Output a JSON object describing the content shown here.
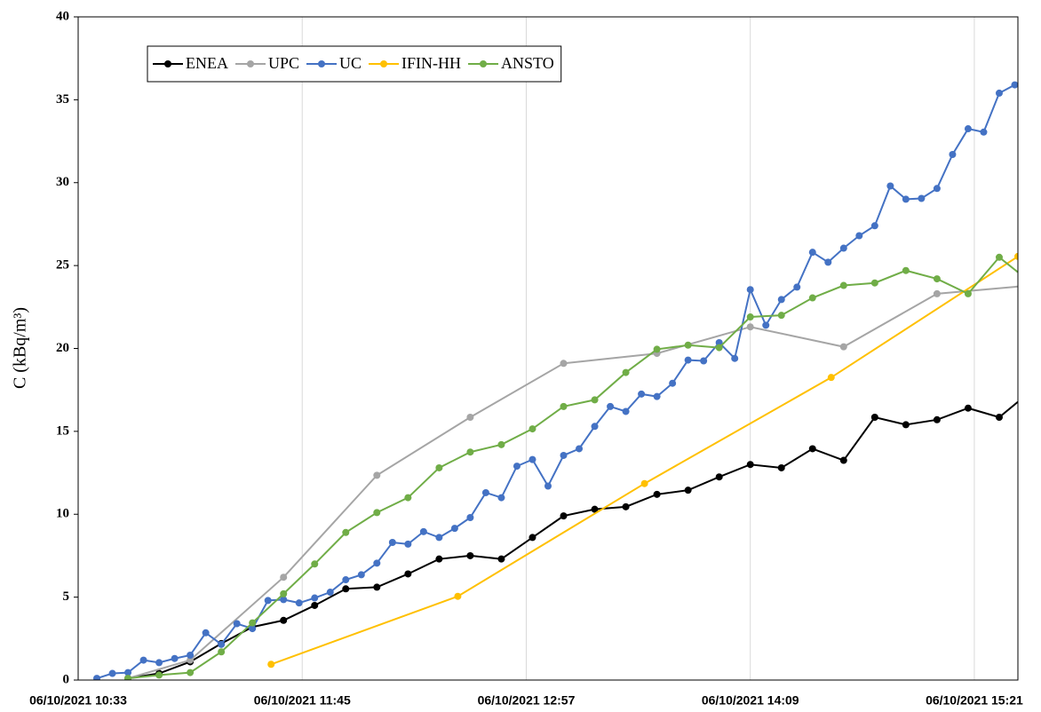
{
  "chart_data": {
    "type": "line",
    "ylabel": "C (kBq/m³)",
    "xlim": [
      "06/10/2021 10:33",
      "06/10/2021 15:35"
    ],
    "xticks": [
      "06/10/2021 10:33",
      "06/10/2021 11:45",
      "06/10/2021 12:57",
      "06/10/2021 14:09",
      "06/10/2021 15:21"
    ],
    "ylim": [
      0,
      40
    ],
    "yticks": [
      0,
      5,
      10,
      15,
      20,
      25,
      30,
      35,
      40
    ],
    "grid": "x",
    "legend": "top-left",
    "series": [
      {
        "name": "ENEA",
        "color": "#000000",
        "x": [
          "06/10/2021 10:49",
          "06/10/2021 10:59",
          "06/10/2021 11:09",
          "06/10/2021 11:19",
          "06/10/2021 11:29",
          "06/10/2021 11:39",
          "06/10/2021 11:49",
          "06/10/2021 11:59",
          "06/10/2021 12:09",
          "06/10/2021 12:19",
          "06/10/2021 12:29",
          "06/10/2021 12:39",
          "06/10/2021 12:49",
          "06/10/2021 12:59",
          "06/10/2021 13:09",
          "06/10/2021 13:19",
          "06/10/2021 13:29",
          "06/10/2021 13:39",
          "06/10/2021 13:49",
          "06/10/2021 13:59",
          "06/10/2021 14:09",
          "06/10/2021 14:19",
          "06/10/2021 14:29",
          "06/10/2021 14:39",
          "06/10/2021 14:49",
          "06/10/2021 14:59",
          "06/10/2021 15:09",
          "06/10/2021 15:19",
          "06/10/2021 15:29",
          "06/10/2021 15:39"
        ],
        "values": [
          0.1,
          0.4,
          1.1,
          2.2,
          3.2,
          3.6,
          4.5,
          5.5,
          5.6,
          6.4,
          7.3,
          7.5,
          7.3,
          8.6,
          9.9,
          10.3,
          10.45,
          11.2,
          11.45,
          12.25,
          13.0,
          12.8,
          13.95,
          13.25,
          15.85,
          15.4,
          15.7,
          16.4,
          15.85,
          17.4
        ]
      },
      {
        "name": "UPC",
        "color": "#a5a5a5",
        "x": [
          "06/10/2021 10:49",
          "06/10/2021 11:09",
          "06/10/2021 11:39",
          "06/10/2021 12:09",
          "06/10/2021 12:39",
          "06/10/2021 13:09",
          "06/10/2021 13:39",
          "06/10/2021 14:09",
          "06/10/2021 14:39",
          "06/10/2021 15:09",
          "06/10/2021 15:39"
        ],
        "values": [
          0.1,
          1.2,
          6.2,
          12.35,
          15.85,
          19.1,
          19.7,
          21.3,
          20.1,
          23.3,
          23.8
        ]
      },
      {
        "name": "UC",
        "color": "#4472c4",
        "x": [
          "06/10/2021 10:39",
          "06/10/2021 10:44",
          "06/10/2021 10:49",
          "06/10/2021 10:54",
          "06/10/2021 10:59",
          "06/10/2021 11:04",
          "06/10/2021 11:09",
          "06/10/2021 11:14",
          "06/10/2021 11:19",
          "06/10/2021 11:24",
          "06/10/2021 11:29",
          "06/10/2021 11:34",
          "06/10/2021 11:39",
          "06/10/2021 11:44",
          "06/10/2021 11:49",
          "06/10/2021 11:54",
          "06/10/2021 11:59",
          "06/10/2021 12:04",
          "06/10/2021 12:09",
          "06/10/2021 12:14",
          "06/10/2021 12:19",
          "06/10/2021 12:24",
          "06/10/2021 12:29",
          "06/10/2021 12:34",
          "06/10/2021 12:39",
          "06/10/2021 12:44",
          "06/10/2021 12:49",
          "06/10/2021 12:54",
          "06/10/2021 12:59",
          "06/10/2021 13:04",
          "06/10/2021 13:09",
          "06/10/2021 13:14",
          "06/10/2021 13:19",
          "06/10/2021 13:24",
          "06/10/2021 13:29",
          "06/10/2021 13:34",
          "06/10/2021 13:39",
          "06/10/2021 13:44",
          "06/10/2021 13:49",
          "06/10/2021 13:54",
          "06/10/2021 13:59",
          "06/10/2021 14:04",
          "06/10/2021 14:09",
          "06/10/2021 14:14",
          "06/10/2021 14:19",
          "06/10/2021 14:24",
          "06/10/2021 14:29",
          "06/10/2021 14:34",
          "06/10/2021 14:39",
          "06/10/2021 14:44",
          "06/10/2021 14:49",
          "06/10/2021 14:54",
          "06/10/2021 14:59",
          "06/10/2021 15:04",
          "06/10/2021 15:09",
          "06/10/2021 15:14",
          "06/10/2021 15:19",
          "06/10/2021 15:24",
          "06/10/2021 15:29",
          "06/10/2021 15:34"
        ],
        "values": [
          0.1,
          0.4,
          0.45,
          1.2,
          1.05,
          1.3,
          1.5,
          2.85,
          2.15,
          3.4,
          3.1,
          4.8,
          4.85,
          4.65,
          4.95,
          5.3,
          6.05,
          6.35,
          7.05,
          8.3,
          8.2,
          8.95,
          8.6,
          9.15,
          9.8,
          11.3,
          11.0,
          12.9,
          13.3,
          11.7,
          13.55,
          13.95,
          15.3,
          16.5,
          16.2,
          17.25,
          17.1,
          17.9,
          19.3,
          19.25,
          20.35,
          19.4,
          23.55,
          21.4,
          22.95,
          23.7,
          25.8,
          25.2,
          26.05,
          26.8,
          27.4,
          29.8,
          29.0,
          29.05,
          29.65,
          31.7,
          33.25,
          33.05,
          35.4,
          35.9
        ]
      },
      {
        "name": "IFIN-HH",
        "color": "#ffc000",
        "x": [
          "06/10/2021 11:35",
          "06/10/2021 12:35",
          "06/10/2021 13:35",
          "06/10/2021 14:35",
          "06/10/2021 15:35"
        ],
        "values": [
          0.95,
          5.05,
          11.85,
          18.25,
          25.55
        ]
      },
      {
        "name": "ANSTO",
        "color": "#70ad47",
        "x": [
          "06/10/2021 10:49",
          "06/10/2021 10:59",
          "06/10/2021 11:09",
          "06/10/2021 11:19",
          "06/10/2021 11:29",
          "06/10/2021 11:39",
          "06/10/2021 11:49",
          "06/10/2021 11:59",
          "06/10/2021 12:09",
          "06/10/2021 12:19",
          "06/10/2021 12:29",
          "06/10/2021 12:39",
          "06/10/2021 12:49",
          "06/10/2021 12:59",
          "06/10/2021 13:09",
          "06/10/2021 13:19",
          "06/10/2021 13:29",
          "06/10/2021 13:39",
          "06/10/2021 13:49",
          "06/10/2021 13:59",
          "06/10/2021 14:09",
          "06/10/2021 14:19",
          "06/10/2021 14:29",
          "06/10/2021 14:39",
          "06/10/2021 14:49",
          "06/10/2021 14:59",
          "06/10/2021 15:09",
          "06/10/2021 15:19",
          "06/10/2021 15:29",
          "06/10/2021 15:39"
        ],
        "values": [
          0.1,
          0.3,
          0.45,
          1.7,
          3.45,
          5.2,
          7.0,
          8.9,
          10.1,
          11.0,
          12.8,
          13.75,
          14.2,
          15.15,
          16.5,
          16.9,
          18.55,
          19.95,
          20.2,
          20.05,
          21.9,
          22.0,
          23.05,
          23.8,
          23.95,
          24.7,
          24.2,
          23.3,
          25.5,
          24.0
        ]
      }
    ]
  }
}
